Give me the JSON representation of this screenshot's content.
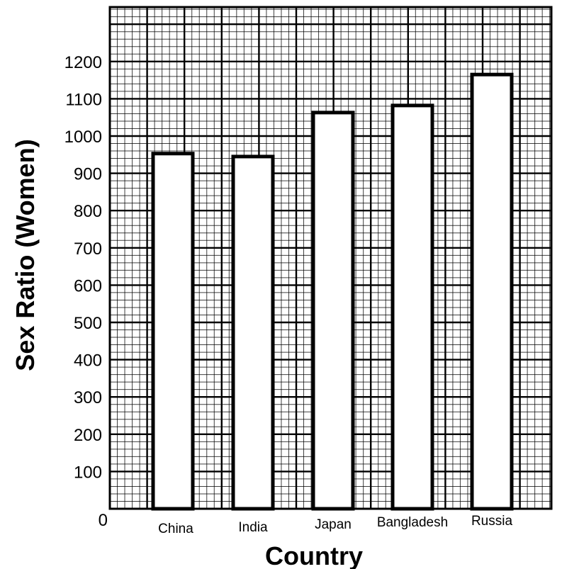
{
  "chart_data": {
    "type": "bar",
    "categories": [
      "China",
      "India",
      "Japan",
      "Bangladesh",
      "Russia"
    ],
    "values": [
      953,
      945,
      1063,
      1082,
      1165
    ],
    "xlabel": "Country",
    "ylabel": "Sex Ratio (Women)",
    "ylim": [
      0,
      1200
    ],
    "yticks": [
      0,
      100,
      200,
      300,
      400,
      500,
      600,
      700,
      800,
      900,
      1000,
      1100,
      1200
    ],
    "grid": true,
    "colors": {
      "bar_fill": "#ffffff",
      "bar_stroke": "#000000",
      "grid": "#000000"
    }
  }
}
